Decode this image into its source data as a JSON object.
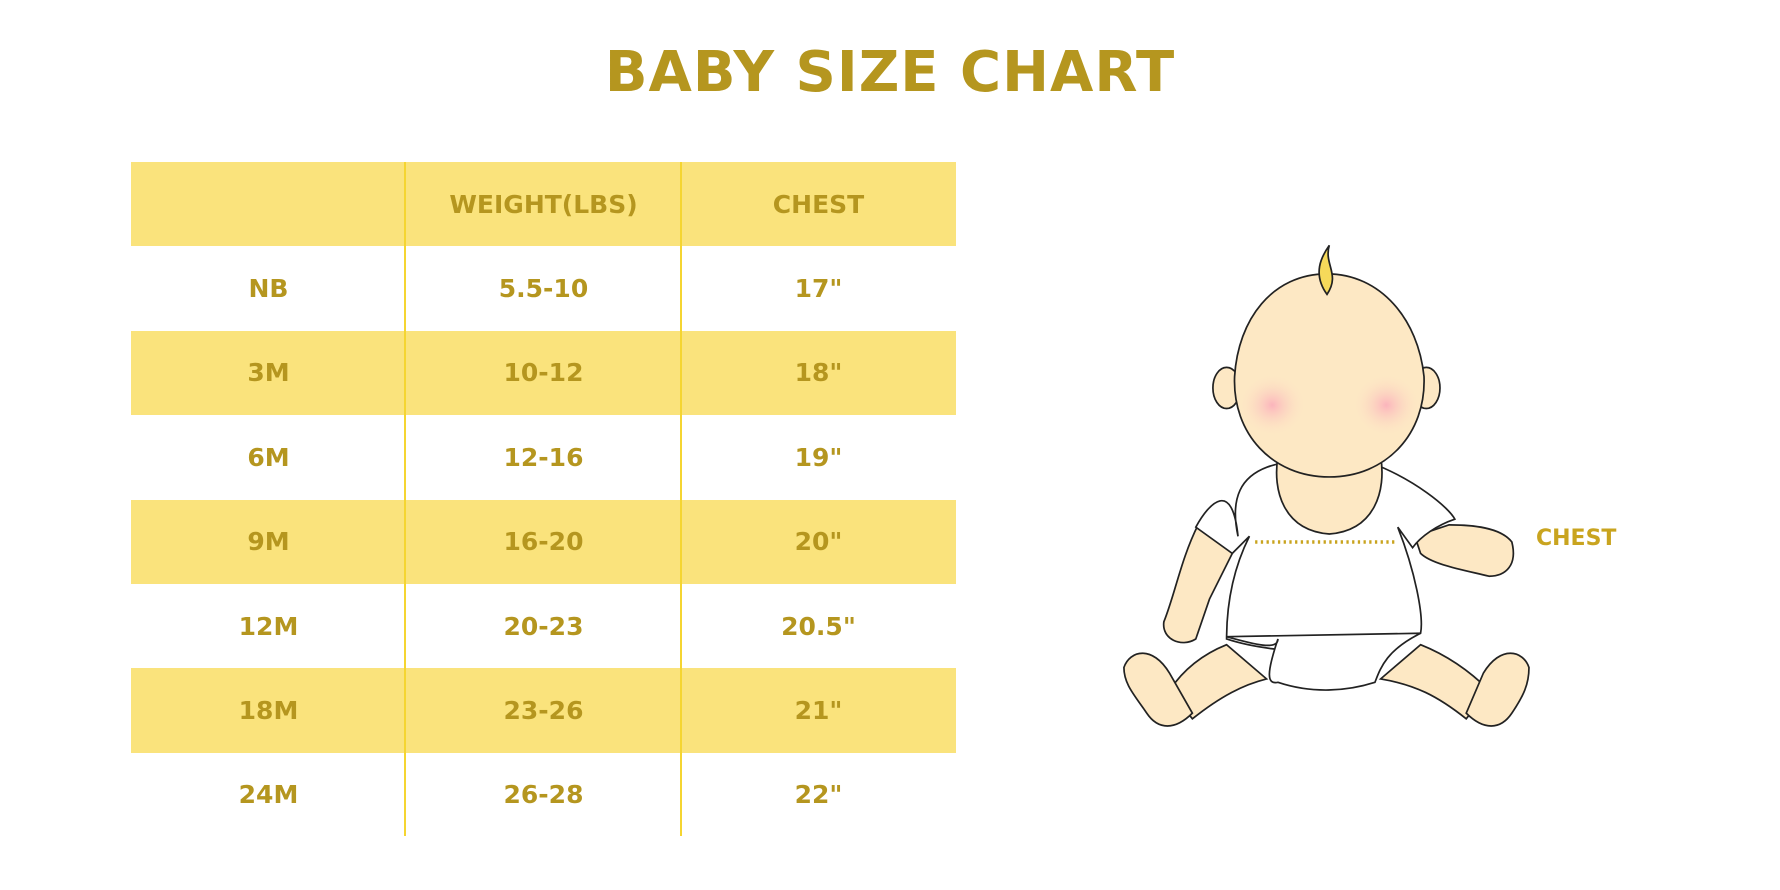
{
  "chart_data": {
    "type": "table",
    "title": "BABY SIZE CHART",
    "columns": [
      "",
      "WEIGHT(LBS)",
      "CHEST"
    ],
    "rows": [
      [
        "NB",
        "5.5-10",
        "17\""
      ],
      [
        "3M",
        "10-12",
        "18\""
      ],
      [
        "6M",
        "12-16",
        "19\""
      ],
      [
        "9M",
        "16-20",
        "20\""
      ],
      [
        "12M",
        "20-23",
        "20.5\""
      ],
      [
        "18M",
        "23-26",
        "21\""
      ],
      [
        "24M",
        "26-28",
        "22\""
      ]
    ]
  },
  "illustration": {
    "chest_label": "CHEST"
  },
  "colors": {
    "text": "#b5961f",
    "row_fill": "#fae37c",
    "divider": "#f5d531",
    "skin": "#fde8c4"
  }
}
